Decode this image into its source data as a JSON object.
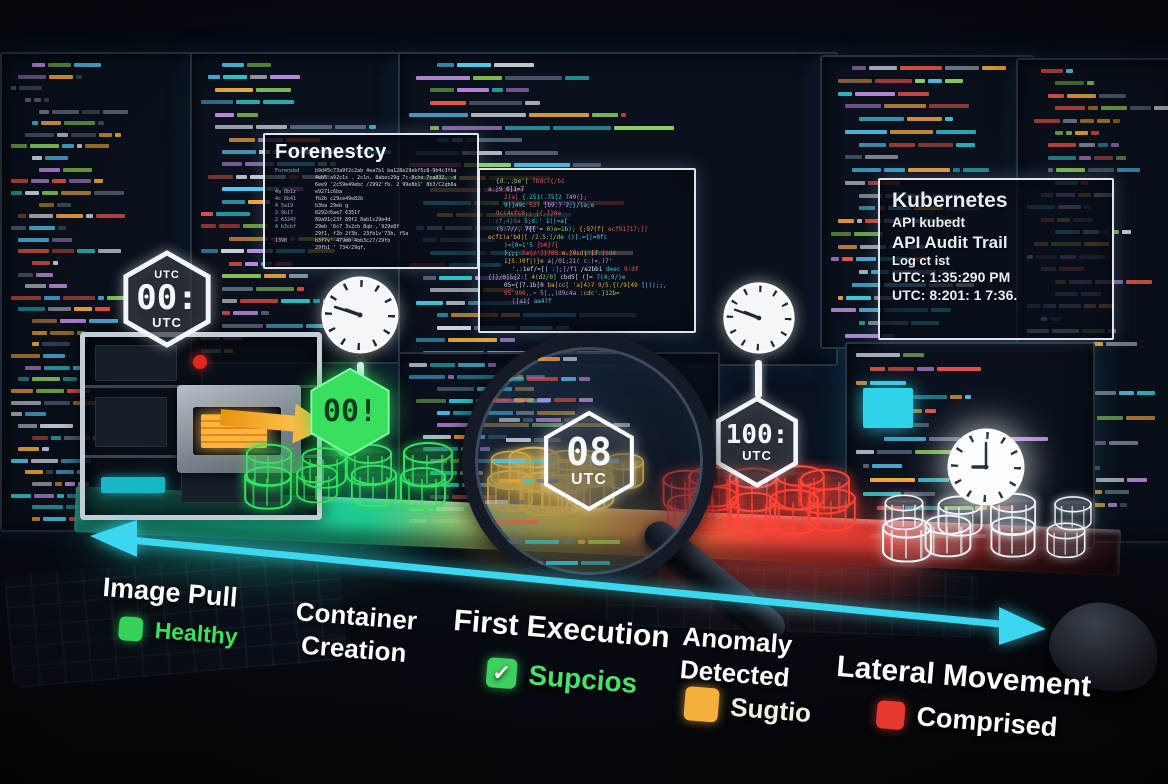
{
  "panels": {
    "forensics": {
      "title": "Forenestcy",
      "rows": [
        {
          "k": "Forensbd",
          "v": "b9d45c73a9f2c2ab 4ea7b1 ba128e29ebf5c8-9b4c3fba"
        },
        {
          "k": "",
          "v": "4eb5 a92c1s . 2c1n, 8abec29g 7c-8cbv 7ca832, -d"
        },
        {
          "k": "",
          "v": "6ee9 '2c59e49ebc /2992'fb. 2 99e8b1' 8b3/C2qb6a"
        },
        {
          "k": "4a 8b1z",
          "v": "e9271c6ba"
        },
        {
          "k": "4c 6b41",
          "v": "fb2b c29ce49e82b"
        },
        {
          "k": "4 5a19",
          "v": "b3ba 29eb g"
        },
        {
          "k": "2 9b17",
          "v": "8292c6ae7 6351f"
        },
        {
          "k": "2 6324f",
          "v": "89a91c23f 89f2 8ab1c29e4d"
        },
        {
          "k": "4 b3cbf",
          "v": "29eb '6c7 3s2cb 8qb ,'929e8f"
        },
        {
          "k": "",
          "v": "29f1, f2b 2f3b. 23fb1v'73b, f5a"
        },
        {
          "k": "1398",
          "v": "b3f7v' 479eb  4bb3c27/29fb"
        },
        {
          "k": "",
          "v": "29fb1 ' 734/29qf,"
        }
      ]
    },
    "code": {
      "line_count": 16
    },
    "kubernetes": {
      "lines": [
        "Kubernetes",
        "API kubedt",
        "API Audit Trail",
        "Log ct  ist",
        "UTC: 1:35:290 PM",
        "UTC: 8:201: 1 7:36."
      ]
    }
  },
  "badges": {
    "t0": {
      "top": "UTC",
      "value": "00:",
      "bottom": "UTC"
    },
    "t1": {
      "value": "00!"
    },
    "t2": {
      "value": "08",
      "bottom": "UTC"
    },
    "t3": {
      "value": "100:",
      "bottom": "UTC"
    }
  },
  "stages": [
    {
      "label": "Image Pull",
      "status": "Healthy"
    },
    {
      "label": "Container Creation",
      "status": ""
    },
    {
      "label": "First Execution",
      "status": "Supcios"
    },
    {
      "label": "Anomaly Detected",
      "status": "Sugtio"
    },
    {
      "label": "Lateral Movement",
      "status": "Comprised"
    }
  ],
  "status_check_glyph": "✓",
  "clusters": [
    {
      "name": "green",
      "count": 8,
      "stroke": "#38e263",
      "fill": "rgba(46,224,96,0.16)",
      "glow": "rgba(46,224,96,0.6)"
    },
    {
      "name": "gold",
      "count": 9,
      "stroke": "#ffcf4a",
      "fill": "rgba(255,196,60,0.5)",
      "glow": "rgba(255,196,60,0.6)"
    },
    {
      "name": "red",
      "count": 10,
      "stroke": "#ff4438",
      "fill": "rgba(255,70,55,0.16)",
      "glow": "rgba(255,70,55,0.55)"
    },
    {
      "name": "ghost",
      "count": 8,
      "stroke": "#eef3f8",
      "fill": "rgba(235,242,248,0.14)",
      "glow": "rgba(235,242,248,0.5)"
    }
  ],
  "colors": {
    "timeline_arrow": "#3bd7ef",
    "healthy": "#3ce05c",
    "supcios": "#4ae06e",
    "sugtio_swatch": "#f4b03c",
    "comprised_swatch": "#e6382e",
    "platform_teal": "#22e0ba",
    "platform_gold": "#fad24a",
    "platform_red": "#ff4a3c",
    "code_palette": [
      "#56c8f2",
      "#e85548",
      "#f2a93c",
      "#8fd05a",
      "#c792ea",
      "#d8dee6",
      "#35cdd8",
      "#5a6b7d"
    ]
  }
}
